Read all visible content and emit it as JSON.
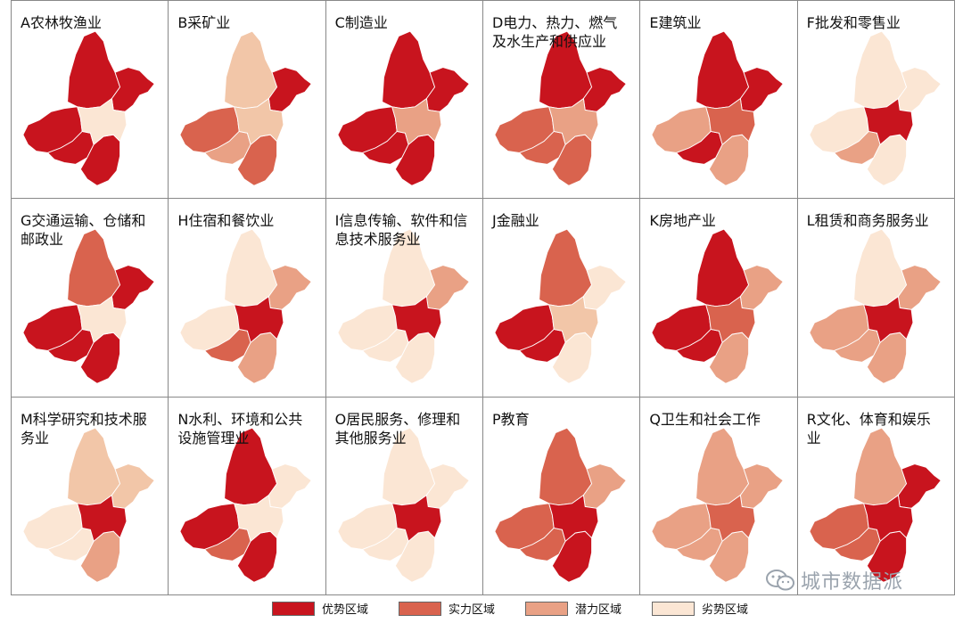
{
  "panels": [
    {
      "title": "A农林牧渔业",
      "colors": {
        "north": "#c8141e",
        "east": "#c8141e",
        "west": "#c8141e",
        "south": "#c8141e",
        "center": "#fbe6d4",
        "sw": "#c8141e"
      }
    },
    {
      "title": "B采矿业",
      "colors": {
        "north": "#f2c6a8",
        "east": "#c8141e",
        "west": "#d9634e",
        "south": "#d9634e",
        "center": "#f2c6a8",
        "sw": "#e9a185"
      }
    },
    {
      "title": "C制造业",
      "colors": {
        "north": "#c8141e",
        "east": "#c8141e",
        "west": "#c8141e",
        "south": "#c8141e",
        "center": "#e9a185",
        "sw": "#c8141e"
      }
    },
    {
      "title": "D电力、热力、燃气及水生产和供应业",
      "colors": {
        "north": "#c8141e",
        "east": "#c8141e",
        "west": "#d9634e",
        "south": "#d9634e",
        "center": "#e9a185",
        "sw": "#d9634e"
      }
    },
    {
      "title": "E建筑业",
      "colors": {
        "north": "#c8141e",
        "east": "#c8141e",
        "west": "#e9a185",
        "south": "#e9a185",
        "center": "#d9634e",
        "sw": "#c8141e"
      }
    },
    {
      "title": "F批发和零售业",
      "colors": {
        "north": "#fbe6d4",
        "east": "#fbe6d4",
        "west": "#fbe6d4",
        "south": "#fbe6d4",
        "center": "#c8141e",
        "sw": "#e9a185"
      }
    },
    {
      "title": "G交通运输、仓储和邮政业",
      "colors": {
        "north": "#d9634e",
        "east": "#c8141e",
        "west": "#c8141e",
        "south": "#c8141e",
        "center": "#fbe6d4",
        "sw": "#c8141e"
      }
    },
    {
      "title": "H住宿和餐饮业",
      "colors": {
        "north": "#fbe6d4",
        "east": "#e9a185",
        "west": "#fbe6d4",
        "south": "#e9a185",
        "center": "#c8141e",
        "sw": "#d9634e"
      }
    },
    {
      "title": "I信息传输、软件和信息技术服务业",
      "colors": {
        "north": "#fbe6d4",
        "east": "#e9a185",
        "west": "#fbe6d4",
        "south": "#fbe6d4",
        "center": "#c8141e",
        "sw": "#fbe6d4"
      }
    },
    {
      "title": "J金融业",
      "colors": {
        "north": "#d9634e",
        "east": "#fbe6d4",
        "west": "#c8141e",
        "south": "#fbe6d4",
        "center": "#f2c6a8",
        "sw": "#c8141e"
      }
    },
    {
      "title": "K房地产业",
      "colors": {
        "north": "#c8141e",
        "east": "#e9a185",
        "west": "#c8141e",
        "south": "#e9a185",
        "center": "#d9634e",
        "sw": "#c8141e"
      }
    },
    {
      "title": "L租赁和商务服务业",
      "colors": {
        "north": "#fbe6d4",
        "east": "#e9a185",
        "west": "#e9a185",
        "south": "#e9a185",
        "center": "#c8141e",
        "sw": "#e9a185"
      }
    },
    {
      "title": "M科学研究和技术服务业",
      "colors": {
        "north": "#f2c6a8",
        "east": "#f2c6a8",
        "west": "#fbe6d4",
        "south": "#e9a185",
        "center": "#c8141e",
        "sw": "#fbe6d4"
      }
    },
    {
      "title": "N水利、环境和公共设施管理业",
      "colors": {
        "north": "#c8141e",
        "east": "#fbe6d4",
        "west": "#c8141e",
        "south": "#c8141e",
        "center": "#fbe6d4",
        "sw": "#d9634e"
      }
    },
    {
      "title": "O居民服务、修理和其他服务业",
      "colors": {
        "north": "#fbe6d4",
        "east": "#fbe6d4",
        "west": "#fbe6d4",
        "south": "#fbe6d4",
        "center": "#c8141e",
        "sw": "#fbe6d4"
      }
    },
    {
      "title": "P教育",
      "colors": {
        "north": "#d9634e",
        "east": "#e9a185",
        "west": "#d9634e",
        "south": "#c8141e",
        "center": "#c8141e",
        "sw": "#d9634e"
      }
    },
    {
      "title": "Q卫生和社会工作",
      "colors": {
        "north": "#e9a185",
        "east": "#e9a185",
        "west": "#e9a185",
        "south": "#e9a185",
        "center": "#d9634e",
        "sw": "#e9a185"
      }
    },
    {
      "title": "R文化、体育和娱乐业",
      "colors": {
        "north": "#e9a185",
        "east": "#c8141e",
        "west": "#d9634e",
        "south": "#c8141e",
        "center": "#c8141e",
        "sw": "#d9634e"
      }
    }
  ],
  "legend": [
    {
      "label": "优势区域",
      "color": "#c8141e"
    },
    {
      "label": "实力区域",
      "color": "#d9634e"
    },
    {
      "label": "潜力区域",
      "color": "#e9a185"
    },
    {
      "label": "劣势区域",
      "color": "#fbe6d4"
    }
  ],
  "watermark": {
    "text": "城市数据派",
    "icon": "wechat-icon"
  }
}
